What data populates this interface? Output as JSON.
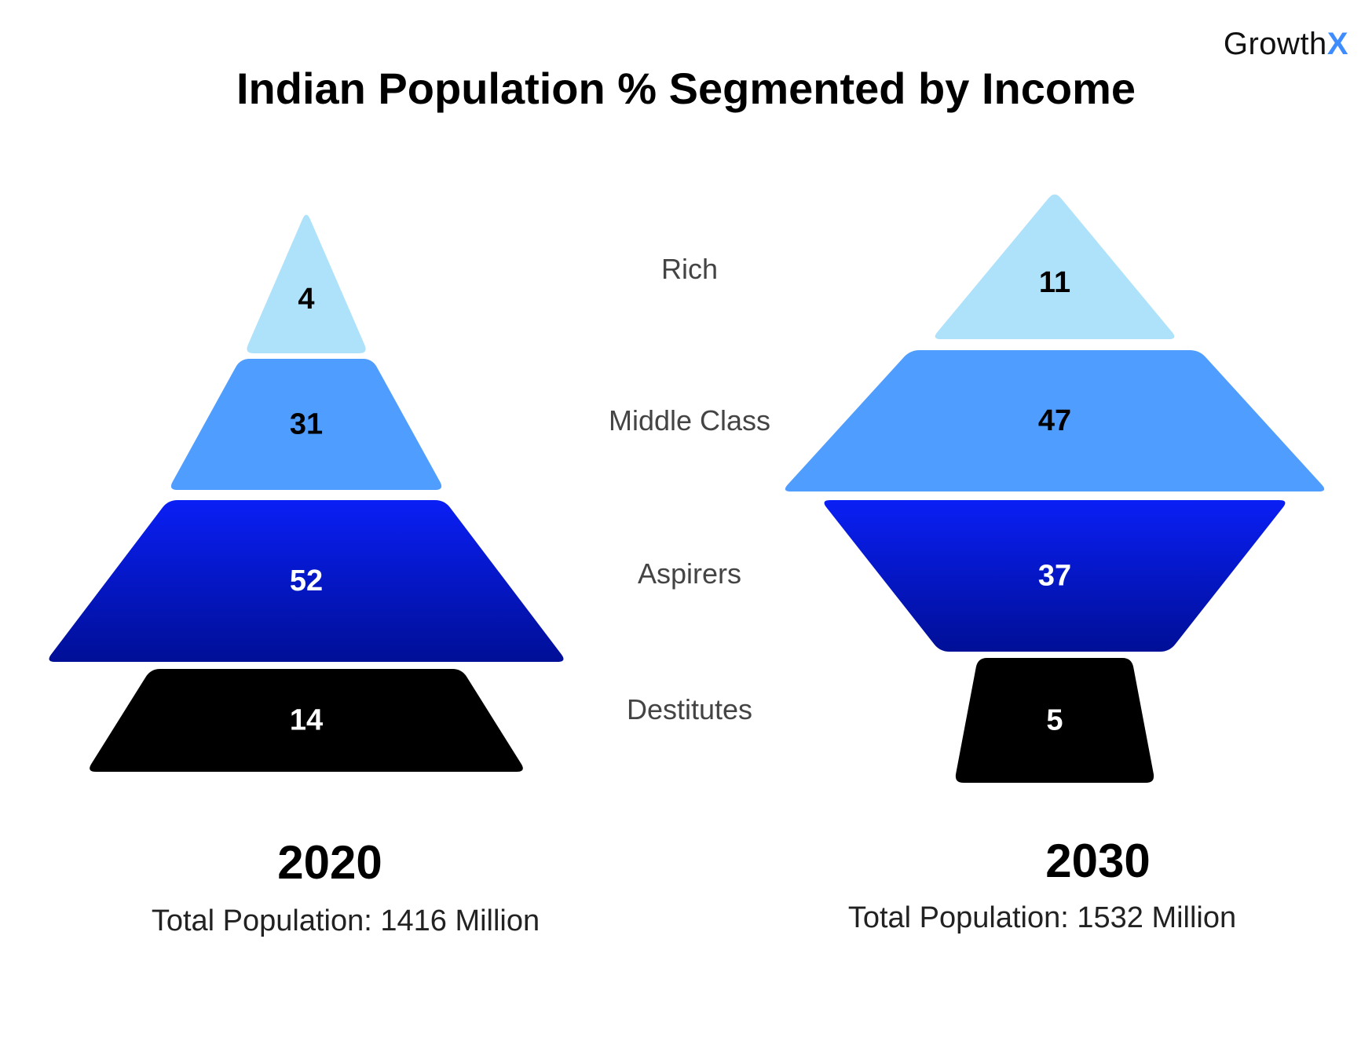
{
  "brand": {
    "logo_text": "Growth",
    "logo_mark": "X",
    "logo_mark_color": "#3f8cff"
  },
  "header": {
    "title": "Indian Population % Segmented by Income"
  },
  "chart_data": {
    "type": "pyramid",
    "title": "Indian Population % Segmented by Income",
    "categories": [
      "Rich",
      "Middle Class",
      "Aspirers",
      "Destitutes"
    ],
    "colors": {
      "Rich": "#aee2fb",
      "Middle Class": "#4f9dff",
      "Aspirers": "#0a1de0",
      "Destitutes": "#000000"
    },
    "series": [
      {
        "year": "2020",
        "total_label": "Total Population: 1416 Million",
        "values": [
          4,
          31,
          52,
          14
        ]
      },
      {
        "year": "2030",
        "total_label": "Total Population: 1532 Million",
        "values": [
          11,
          47,
          37,
          5
        ]
      }
    ]
  }
}
